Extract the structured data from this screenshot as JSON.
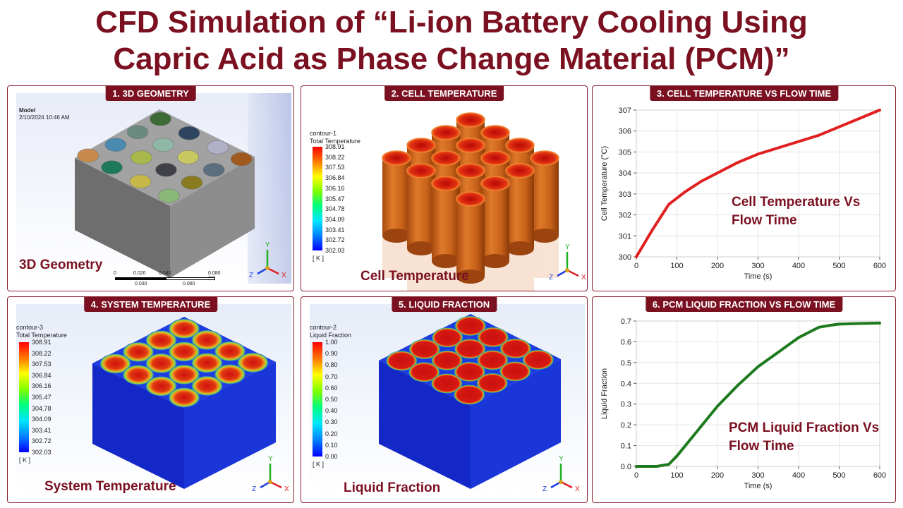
{
  "title": {
    "line1": "CFD Simulation of “Li-ion Battery Cooling Using",
    "line2": "Capric Acid as Phase Change Material (PCM)”"
  },
  "panels": {
    "p1": {
      "header": "1. 3D GEOMETRY",
      "caption": "3D Geometry",
      "model": "Model",
      "date": "2/10/2024 10:46 AM",
      "scale_top": [
        "0",
        "0.020",
        "0.040",
        "0.080 (m)"
      ],
      "scale_bottom": [
        "0.030",
        "0.060"
      ],
      "colors": [
        "#3d6b35",
        "#2e4560",
        "#b0b0c8",
        "#6a8a80",
        "#8fb7a6",
        "#c8c860",
        "#5a6e80",
        "#4a8ab0",
        "#a8b84a",
        "#404048",
        "#8a7a20",
        "#1f7a5a",
        "#c8b84a",
        "#8ab878",
        "#a05a20",
        "#c88a4a",
        "#5a6030",
        "#a8a8a8"
      ]
    },
    "p2": {
      "header": "2. CELL TEMPERATURE",
      "caption": "Cell Temperature",
      "legend_title1": "contour-1",
      "legend_title2": "Total Temperature",
      "ticks": [
        "308.91",
        "308.22",
        "307.53",
        "306.84",
        "306.16",
        "305.47",
        "304.78",
        "304.09",
        "303.41",
        "302.72",
        "302.03"
      ],
      "unit": "[ K ]"
    },
    "p3": {
      "header": "3. CELL TEMPERATURE VS FLOW TIME",
      "annot1": "Cell Temperature Vs",
      "annot2": "Flow Time"
    },
    "p4": {
      "header": "4. SYSTEM TEMPERATURE",
      "caption": "System Temperature",
      "legend_title1": "contour-3",
      "legend_title2": "Total Temperature",
      "ticks": [
        "308.91",
        "308.22",
        "307.53",
        "306.84",
        "306.16",
        "305.47",
        "304.78",
        "304.09",
        "303.41",
        "302.72",
        "302.03"
      ],
      "unit": "[ K ]"
    },
    "p5": {
      "header": "5. LIQUID FRACTION",
      "caption": "Liquid Fraction",
      "legend_title1": "contour-2",
      "legend_title2": "Liquid Fraction",
      "ticks": [
        "1.00",
        "0.90",
        "0.80",
        "0.70",
        "0.60",
        "0.50",
        "0.40",
        "0.30",
        "0.20",
        "0.10",
        "0.00"
      ],
      "unit": "[ K ]"
    },
    "p6": {
      "header": "6. PCM LIQUID FRACTION VS FLOW TIME",
      "annot1": "PCM Liquid Fraction Vs",
      "annot2": "Flow Time"
    }
  },
  "triad": {
    "x": "X",
    "y": "Y",
    "z": "Z"
  },
  "chart_data": [
    {
      "type": "line",
      "xlabel": "Time (s)",
      "ylabel": "Cell Temperature (°C)",
      "xlim": [
        0,
        600
      ],
      "ylim": [
        300,
        307
      ],
      "xticks": [
        0,
        100,
        200,
        300,
        400,
        500,
        600
      ],
      "yticks": [
        300,
        301,
        302,
        303,
        304,
        305,
        306,
        307
      ],
      "grid": true,
      "color": "#e02020",
      "series": [
        {
          "x": [
            0,
            40,
            80,
            120,
            160,
            200,
            250,
            300,
            350,
            400,
            450,
            500,
            550,
            600
          ],
          "y": [
            300.0,
            301.3,
            302.5,
            303.1,
            303.6,
            304.0,
            304.5,
            304.9,
            305.2,
            305.5,
            305.8,
            306.2,
            306.6,
            307.0
          ]
        }
      ]
    },
    {
      "type": "line",
      "xlabel": "Time (s)",
      "ylabel": "Liquid Fraction",
      "xlim": [
        0,
        600
      ],
      "ylim": [
        0,
        0.7
      ],
      "xticks": [
        0,
        100,
        200,
        300,
        400,
        500,
        600
      ],
      "yticks": [
        0.0,
        0.1,
        0.2,
        0.3,
        0.4,
        0.5,
        0.6,
        0.7
      ],
      "grid": true,
      "color": "#1e7a1e",
      "series": [
        {
          "x": [
            0,
            50,
            80,
            100,
            150,
            200,
            250,
            300,
            350,
            400,
            450,
            480,
            500,
            550,
            600
          ],
          "y": [
            0.0,
            0.0,
            0.01,
            0.05,
            0.17,
            0.29,
            0.39,
            0.48,
            0.55,
            0.62,
            0.67,
            0.68,
            0.685,
            0.688,
            0.69
          ]
        }
      ]
    }
  ]
}
